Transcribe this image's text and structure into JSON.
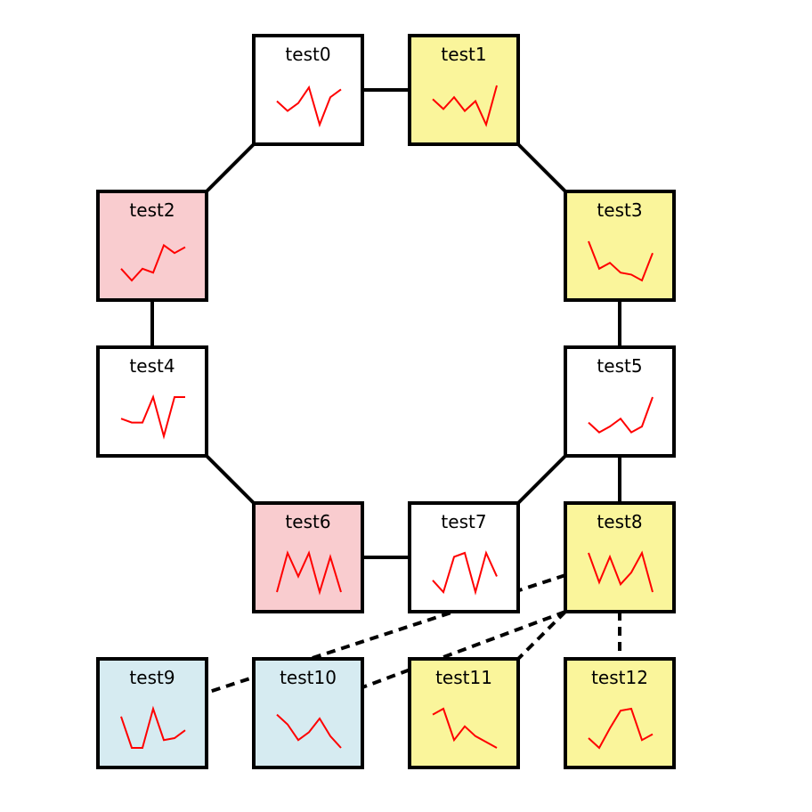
{
  "colors": {
    "white": "#ffffff",
    "yellow": "#faf59b",
    "pink": "#f9cccf",
    "blue": "#d6ebf1",
    "spark": "#ff0000"
  },
  "nodes": [
    {
      "id": "test0",
      "label": "test0",
      "fill": "white",
      "spark": [
        0.6,
        0.35,
        0.55,
        0.95,
        0.0,
        0.7,
        0.9
      ]
    },
    {
      "id": "test1",
      "label": "test1",
      "fill": "yellow",
      "spark": [
        0.65,
        0.4,
        0.7,
        0.35,
        0.6,
        0.0,
        1.0
      ]
    },
    {
      "id": "test2",
      "label": "test2",
      "fill": "pink",
      "spark": [
        0.3,
        0.0,
        0.3,
        0.2,
        0.9,
        0.7,
        0.85
      ]
    },
    {
      "id": "test3",
      "label": "test3",
      "fill": "yellow",
      "spark": [
        1.0,
        0.3,
        0.45,
        0.2,
        0.15,
        0.0,
        0.7
      ]
    },
    {
      "id": "test4",
      "label": "test4",
      "fill": "white",
      "spark": [
        0.45,
        0.35,
        0.35,
        1.0,
        0.0,
        1.0,
        1.0
      ]
    },
    {
      "id": "test5",
      "label": "test5",
      "fill": "white",
      "spark": [
        0.35,
        0.1,
        0.25,
        0.45,
        0.1,
        0.25,
        1.0
      ]
    },
    {
      "id": "test6",
      "label": "test6",
      "fill": "pink",
      "spark": [
        0.0,
        1.0,
        0.4,
        1.0,
        0.0,
        0.9,
        0.0
      ]
    },
    {
      "id": "test7",
      "label": "test7",
      "fill": "white",
      "spark": [
        0.3,
        0.0,
        0.9,
        1.0,
        0.0,
        1.0,
        0.4
      ]
    },
    {
      "id": "test8",
      "label": "test8",
      "fill": "yellow",
      "spark": [
        1.0,
        0.25,
        0.9,
        0.2,
        0.5,
        1.0,
        0.0
      ]
    },
    {
      "id": "test9",
      "label": "test9",
      "fill": "blue",
      "spark": [
        0.8,
        0.0,
        0.0,
        1.0,
        0.2,
        0.25,
        0.45
      ]
    },
    {
      "id": "test10",
      "label": "test10",
      "fill": "blue",
      "spark": [
        0.85,
        0.6,
        0.2,
        0.4,
        0.75,
        0.3,
        0.0
      ]
    },
    {
      "id": "test11",
      "label": "test11",
      "fill": "yellow",
      "spark": [
        0.85,
        1.0,
        0.2,
        0.55,
        0.3,
        0.15,
        0.0
      ]
    },
    {
      "id": "test12",
      "label": "test12",
      "fill": "yellow",
      "spark": [
        0.25,
        0.0,
        0.5,
        0.95,
        1.0,
        0.2,
        0.35
      ]
    }
  ],
  "edges": [
    {
      "from": "test0",
      "to": "test1",
      "style": "solid"
    },
    {
      "from": "test0",
      "to": "test2",
      "style": "solid"
    },
    {
      "from": "test1",
      "to": "test3",
      "style": "solid"
    },
    {
      "from": "test2",
      "to": "test4",
      "style": "solid"
    },
    {
      "from": "test3",
      "to": "test5",
      "style": "solid"
    },
    {
      "from": "test4",
      "to": "test6",
      "style": "solid"
    },
    {
      "from": "test5",
      "to": "test7",
      "style": "solid"
    },
    {
      "from": "test5",
      "to": "test8",
      "style": "solid"
    },
    {
      "from": "test6",
      "to": "test7",
      "style": "solid"
    },
    {
      "from": "test8",
      "to": "test9",
      "style": "dashed"
    },
    {
      "from": "test8",
      "to": "test10",
      "style": "dashed"
    },
    {
      "from": "test8",
      "to": "test11",
      "style": "dashed"
    },
    {
      "from": "test8",
      "to": "test12",
      "style": "dashed"
    }
  ]
}
